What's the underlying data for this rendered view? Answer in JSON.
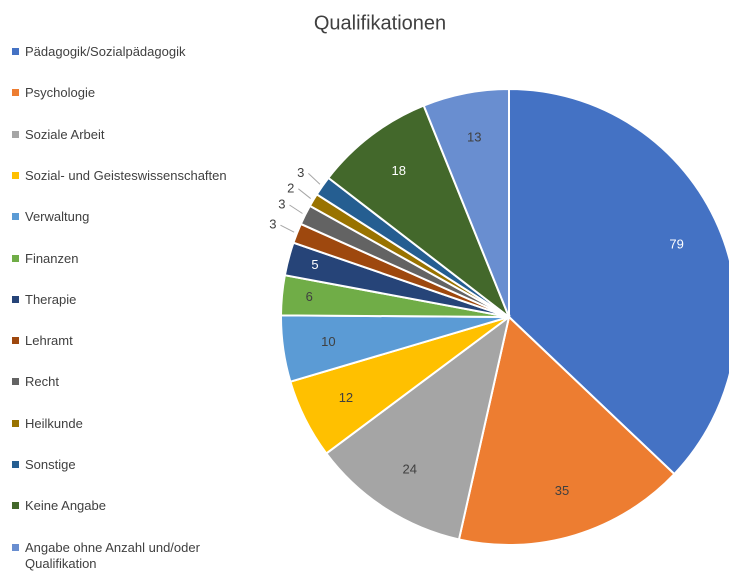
{
  "chart_data": {
    "type": "pie",
    "title": "Qualifikationen",
    "categories": [
      "Pädagogik/Sozialpädagogik",
      "Psychologie",
      "Soziale Arbeit",
      "Sozial- und Geisteswissenschaften",
      "Verwaltung",
      "Finanzen",
      "Therapie",
      "Lehramt",
      "Recht",
      "Heilkunde",
      "Sonstige",
      "Keine Angabe",
      "Angabe ohne Anzahl und/oder Qualifikation"
    ],
    "values": [
      79,
      35,
      24,
      12,
      10,
      6,
      5,
      3,
      3,
      2,
      3,
      18,
      13
    ],
    "colors": [
      "#4472c4",
      "#ed7d31",
      "#a5a5a5",
      "#ffc000",
      "#5b9bd5",
      "#70ad47",
      "#264478",
      "#9e480e",
      "#636363",
      "#997300",
      "#255e91",
      "#43682b",
      "#698ed0"
    ],
    "legend": "left"
  }
}
